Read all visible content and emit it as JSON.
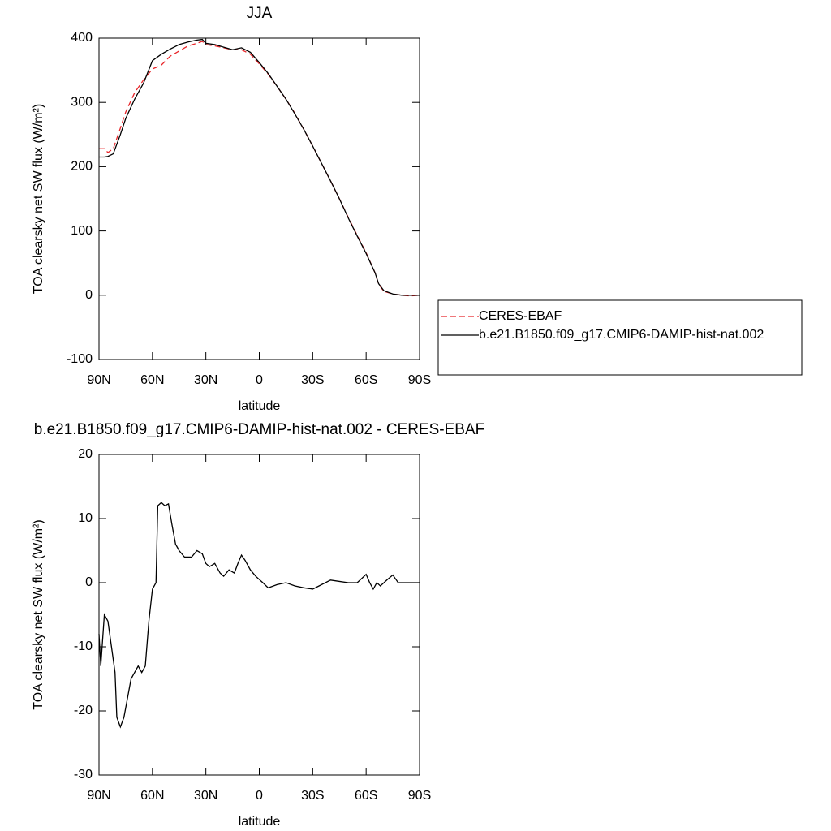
{
  "chart_data": [
    {
      "type": "line",
      "title": "JJA",
      "xlabel": "latitude",
      "ylabel": "TOA clearsky net SW flux (W/m²)",
      "xlim": [
        90,
        -90
      ],
      "xticks": [
        {
          "value": 90,
          "label": "90N"
        },
        {
          "value": 60,
          "label": "60N"
        },
        {
          "value": 30,
          "label": "30N"
        },
        0,
        {
          "value": -30,
          "label": "30S"
        },
        {
          "value": -60,
          "label": "60S"
        },
        {
          "value": -90,
          "label": "90S"
        }
      ],
      "ylim": [
        -100,
        400
      ],
      "yticks": [
        -100,
        0,
        100,
        200,
        300,
        400
      ],
      "legend": "right",
      "x": [
        90,
        87,
        85,
        82,
        78,
        75,
        70,
        65,
        60,
        55,
        50,
        45,
        40,
        35,
        32,
        30,
        25,
        20,
        15,
        10,
        5,
        0,
        -5,
        -10,
        -15,
        -20,
        -25,
        -30,
        -35,
        -40,
        -45,
        -50,
        -55,
        -60,
        -65,
        -67,
        -70,
        -75,
        -80,
        -85,
        -90
      ],
      "series": [
        {
          "name": "CERES-EBAF",
          "color": "#e8262a",
          "dashed": true,
          "values": [
            228,
            228,
            222,
            228,
            260,
            285,
            315,
            335,
            352,
            358,
            372,
            380,
            388,
            392,
            395,
            390,
            388,
            385,
            382,
            382,
            375,
            360,
            344,
            325,
            305,
            283,
            258,
            232,
            205,
            178,
            150,
            121,
            93,
            66,
            35,
            17,
            6,
            2,
            0,
            -1,
            0
          ]
        },
        {
          "name": "b.e21.B1850.f09_g17.CMIP6-DAMIP-hist-nat.002",
          "color": "#000000",
          "dashed": false,
          "values": [
            215,
            215,
            216,
            220,
            250,
            275,
            305,
            330,
            365,
            375,
            383,
            390,
            394,
            397,
            398,
            392,
            390,
            386,
            382,
            385,
            378,
            362,
            345,
            325,
            305,
            282,
            258,
            232,
            205,
            178,
            150,
            120,
            92,
            65,
            35,
            18,
            7,
            2,
            0,
            0,
            0
          ]
        }
      ]
    },
    {
      "type": "line",
      "title": "b.e21.B1850.f09_g17.CMIP6-DAMIP-hist-nat.002 - CERES-EBAF",
      "xlabel": "latitude",
      "ylabel": "TOA clearsky net SW flux (W/m²)",
      "xlim": [
        90,
        -90
      ],
      "xticks": [
        {
          "value": 90,
          "label": "90N"
        },
        {
          "value": 60,
          "label": "60N"
        },
        {
          "value": 30,
          "label": "30N"
        },
        0,
        {
          "value": -30,
          "label": "30S"
        },
        {
          "value": -60,
          "label": "60S"
        },
        {
          "value": -90,
          "label": "90S"
        }
      ],
      "ylim": [
        -30,
        20
      ],
      "yticks": [
        -30,
        -20,
        -10,
        0,
        10,
        20
      ],
      "x": [
        90,
        89,
        87,
        85,
        83,
        81,
        80,
        78,
        76,
        74,
        72,
        70,
        68,
        66,
        64,
        62,
        60,
        58,
        57,
        55,
        53,
        51,
        49,
        47,
        45,
        42,
        38,
        35,
        32,
        30,
        28,
        25,
        22,
        20,
        17,
        14,
        12,
        10,
        8,
        5,
        2,
        0,
        -2,
        -5,
        -10,
        -15,
        -20,
        -25,
        -30,
        -35,
        -40,
        -45,
        -50,
        -55,
        -60,
        -62,
        -64,
        -66,
        -68,
        -72,
        -75,
        -78,
        -80,
        -90
      ],
      "series": [
        {
          "name": "b.e21.B1850.f09_g17.CMIP6-DAMIP-hist-nat.002 - CERES-EBAF",
          "color": "#000000",
          "dashed": false,
          "values": [
            -8,
            -13,
            -5,
            -6,
            -10,
            -14,
            -21,
            -22.5,
            -21,
            -18,
            -15,
            -14,
            -13,
            -14,
            -13,
            -6,
            -1,
            0,
            12,
            12.5,
            12,
            12.3,
            9,
            6,
            5,
            4,
            4,
            5,
            4.5,
            3,
            2.5,
            3,
            1.5,
            1,
            2,
            1.5,
            3,
            4.3,
            3.5,
            2,
            1,
            0.5,
            0,
            -0.8,
            -0.3,
            0,
            -0.5,
            -0.8,
            -1,
            -0.3,
            0.4,
            0.2,
            0,
            0,
            1.3,
            0,
            -1,
            0,
            -0.5,
            0.5,
            1.2,
            0,
            0,
            0
          ]
        }
      ]
    }
  ]
}
